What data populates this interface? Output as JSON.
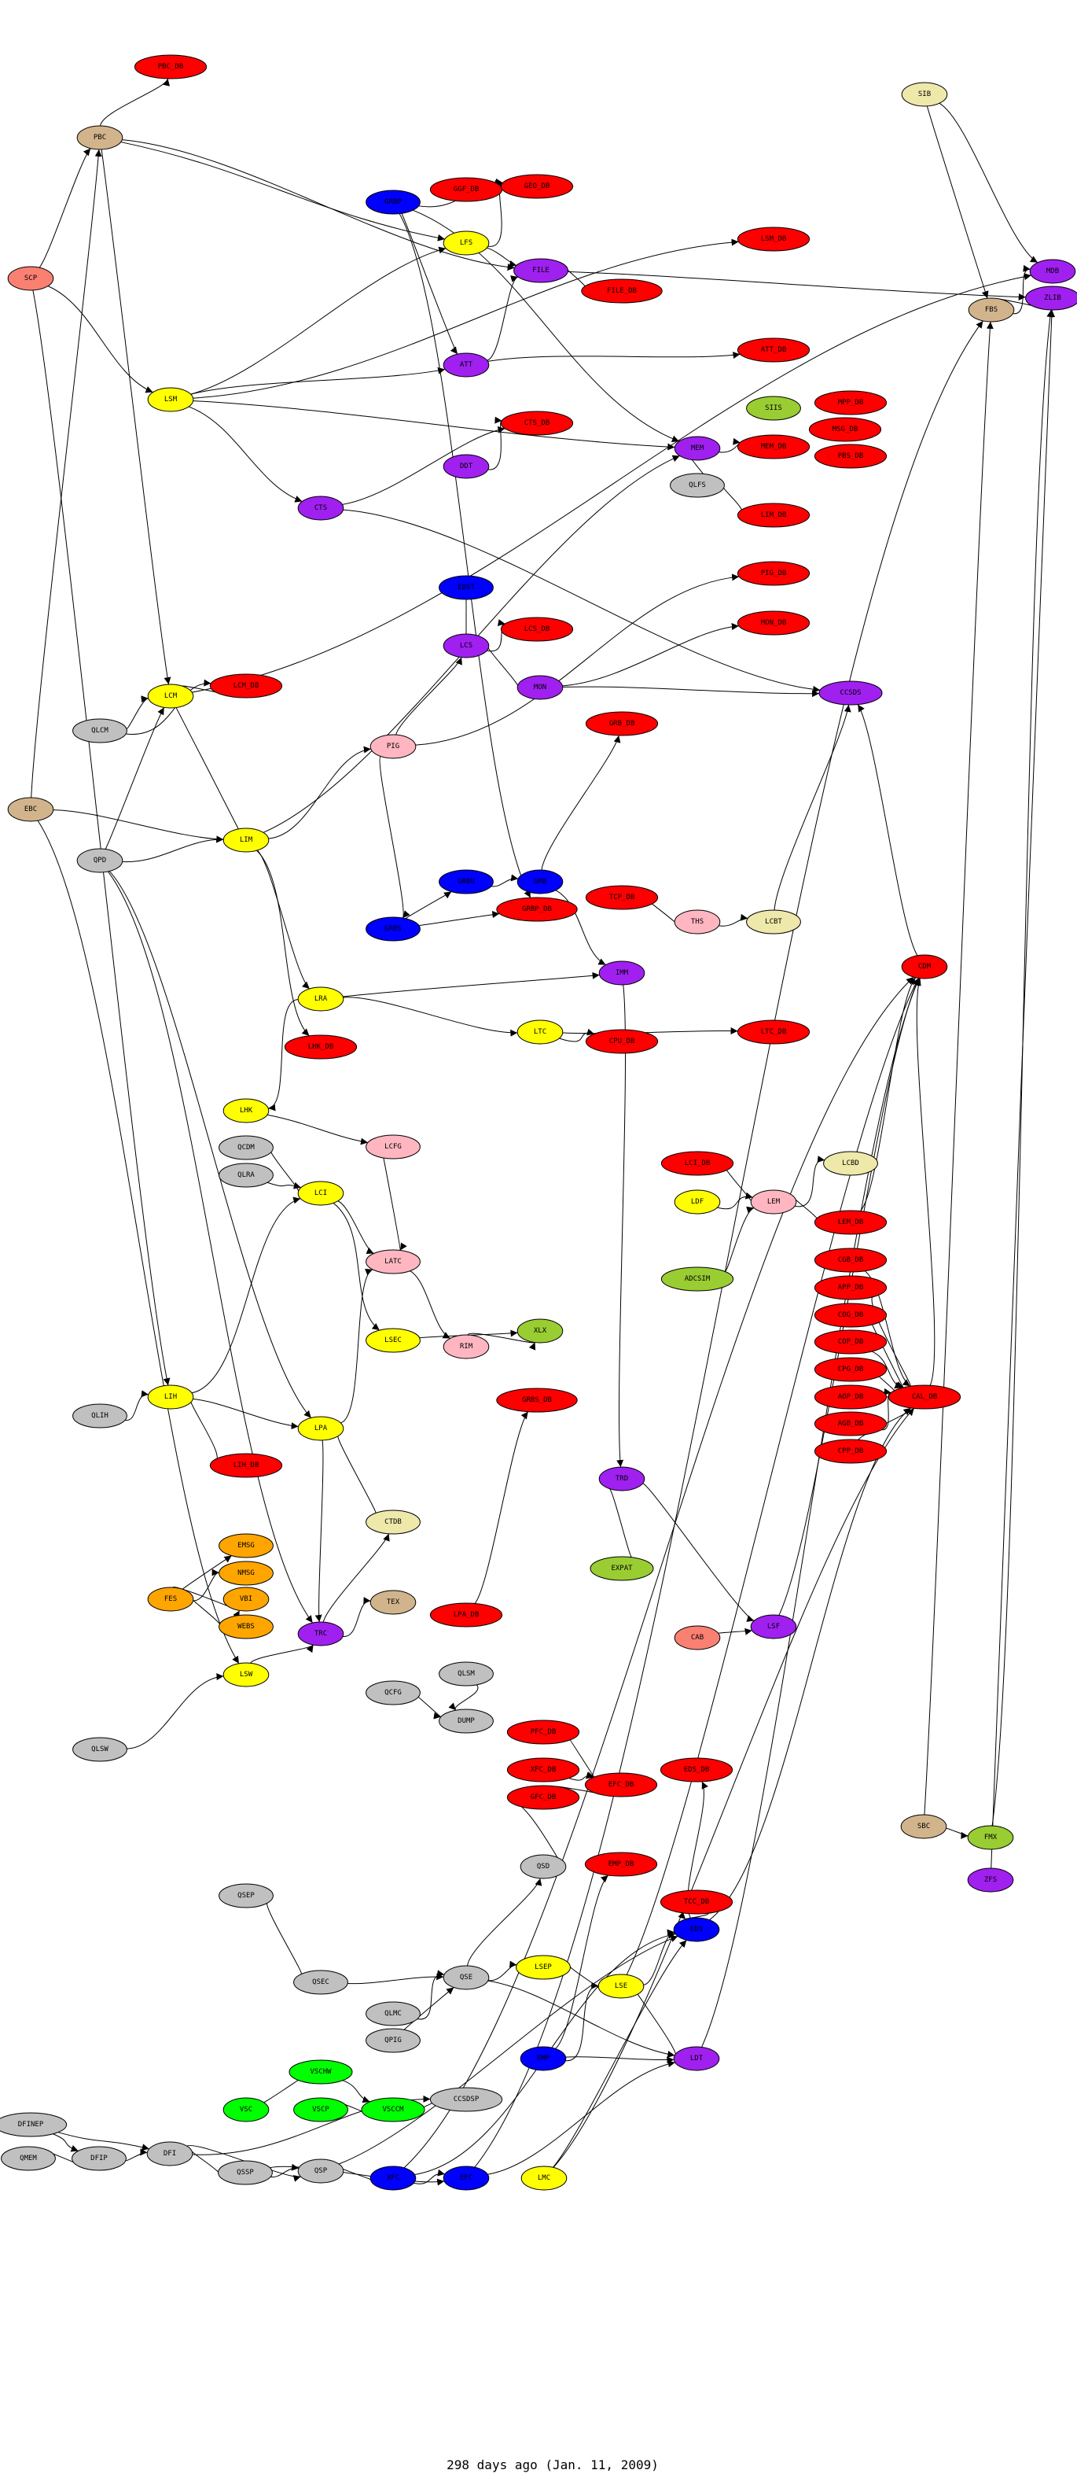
{
  "caption": "298 days ago (Jan. 11, 2009)",
  "colors": {
    "red": "#ff0000",
    "yellow": "#ffff00",
    "purple": "#a020f0",
    "blue": "#0000ff",
    "gray": "#c0c0c0",
    "tan": "#d2b48c",
    "salmon": "#fa8072",
    "pink": "#ffb6c1",
    "khaki": "#eee8aa",
    "olive": "#9acd32",
    "orange": "#ffa500",
    "green": "#00ff00"
  },
  "nodes": [
    {
      "label": "PBC_DB",
      "color": "red"
    },
    {
      "label": "PBC",
      "color": "tan"
    },
    {
      "label": "SCP",
      "color": "salmon"
    },
    {
      "label": "GRBP",
      "color": "blue"
    },
    {
      "label": "GGF_DB",
      "color": "red"
    },
    {
      "label": "GEO_DB",
      "color": "red"
    },
    {
      "label": "LFS",
      "color": "yellow"
    },
    {
      "label": "FILE",
      "color": "purple"
    },
    {
      "label": "ATT",
      "color": "purple"
    },
    {
      "label": "CTS_DB",
      "color": "red"
    },
    {
      "label": "DDT",
      "color": "purple"
    },
    {
      "label": "CTS",
      "color": "purple"
    },
    {
      "label": "LSM",
      "color": "yellow"
    },
    {
      "label": "SIB",
      "color": "khaki"
    },
    {
      "label": "MDB",
      "color": "purple"
    },
    {
      "label": "ZLIB",
      "color": "purple"
    },
    {
      "label": "FBS",
      "color": "tan"
    },
    {
      "label": "LSM_DB",
      "color": "red"
    },
    {
      "label": "FILE_DB",
      "color": "red"
    },
    {
      "label": "ATT_DB",
      "color": "red"
    },
    {
      "label": "SIIS",
      "color": "olive"
    },
    {
      "label": "MPP_DB",
      "color": "red"
    },
    {
      "label": "MSG_DB",
      "color": "red"
    },
    {
      "label": "PBS_DB",
      "color": "red"
    },
    {
      "label": "MEM",
      "color": "purple"
    },
    {
      "label": "MEM_DB",
      "color": "red"
    },
    {
      "label": "QLFS",
      "color": "gray"
    },
    {
      "label": "LIM_DB",
      "color": "red"
    },
    {
      "label": "EDST",
      "color": "blue"
    },
    {
      "label": "LCS_DB",
      "color": "red"
    },
    {
      "label": "LCS",
      "color": "purple"
    },
    {
      "label": "MON",
      "color": "purple"
    },
    {
      "label": "LCM",
      "color": "yellow"
    },
    {
      "label": "LCM_DB",
      "color": "red"
    },
    {
      "label": "QLCM",
      "color": "gray"
    },
    {
      "label": "PIG",
      "color": "pink"
    },
    {
      "label": "EBC",
      "color": "tan"
    },
    {
      "label": "QPD",
      "color": "gray"
    },
    {
      "label": "LIM",
      "color": "yellow"
    },
    {
      "label": "GRBU",
      "color": "blue"
    },
    {
      "label": "GRB",
      "color": "blue"
    },
    {
      "label": "GRBP_DB",
      "color": "red"
    },
    {
      "label": "GRBS",
      "color": "blue"
    },
    {
      "label": "LRA",
      "color": "yellow"
    },
    {
      "label": "LTC",
      "color": "yellow"
    },
    {
      "label": "LHK_DB",
      "color": "red"
    },
    {
      "label": "PIG_DB",
      "color": "red"
    },
    {
      "label": "MON_DB",
      "color": "red"
    },
    {
      "label": "CCSDS",
      "color": "purple"
    },
    {
      "label": "GRB_DB",
      "color": "red"
    },
    {
      "label": "TCP_DB",
      "color": "red"
    },
    {
      "label": "THS",
      "color": "pink"
    },
    {
      "label": "LCBT",
      "color": "khaki"
    },
    {
      "label": "CDM",
      "color": "red"
    },
    {
      "label": "IMM",
      "color": "purple"
    },
    {
      "label": "CPU_DB",
      "color": "red"
    },
    {
      "label": "LTC_DB",
      "color": "red"
    },
    {
      "label": "LHK",
      "color": "yellow"
    },
    {
      "label": "QCDM",
      "color": "gray"
    },
    {
      "label": "QLRA",
      "color": "gray"
    },
    {
      "label": "LCI",
      "color": "yellow"
    },
    {
      "label": "LCFG",
      "color": "pink"
    },
    {
      "label": "LATC",
      "color": "pink"
    },
    {
      "label": "XLX",
      "color": "olive"
    },
    {
      "label": "RIM",
      "color": "pink"
    },
    {
      "label": "LSEC",
      "color": "yellow"
    },
    {
      "label": "LIH",
      "color": "yellow"
    },
    {
      "label": "QLIH",
      "color": "gray"
    },
    {
      "label": "GRBS_DB",
      "color": "red"
    },
    {
      "label": "LPA",
      "color": "yellow"
    },
    {
      "label": "LIH_DB",
      "color": "red"
    },
    {
      "label": "CTDB",
      "color": "khaki"
    },
    {
      "label": "EMSG",
      "color": "orange"
    },
    {
      "label": "NMSG",
      "color": "orange"
    },
    {
      "label": "VBI",
      "color": "orange"
    },
    {
      "label": "FES",
      "color": "orange"
    },
    {
      "label": "WEBS",
      "color": "orange"
    },
    {
      "label": "TEX",
      "color": "tan"
    },
    {
      "label": "TRC",
      "color": "purple"
    },
    {
      "label": "LPA_DB",
      "color": "red"
    },
    {
      "label": "LCI_DB",
      "color": "red"
    },
    {
      "label": "LDF",
      "color": "yellow"
    },
    {
      "label": "LEM",
      "color": "pink"
    },
    {
      "label": "LCBD",
      "color": "khaki"
    },
    {
      "label": "LEM_DB",
      "color": "red"
    },
    {
      "label": "CGB_DB",
      "color": "red"
    },
    {
      "label": "APP_DB",
      "color": "red"
    },
    {
      "label": "COG_DB",
      "color": "red"
    },
    {
      "label": "COP_DB",
      "color": "red"
    },
    {
      "label": "CPG_DB",
      "color": "red"
    },
    {
      "label": "AOP_DB",
      "color": "red"
    },
    {
      "label": "AGB_DB",
      "color": "red"
    },
    {
      "label": "CPP_DB",
      "color": "red"
    },
    {
      "label": "CAL_DB",
      "color": "red"
    },
    {
      "label": "ADCSIM",
      "color": "olive"
    },
    {
      "label": "TRD",
      "color": "purple"
    },
    {
      "label": "EXPAT",
      "color": "olive"
    },
    {
      "label": "LSF",
      "color": "purple"
    },
    {
      "label": "CAB",
      "color": "salmon"
    },
    {
      "label": "LSW",
      "color": "yellow"
    },
    {
      "label": "QLSW",
      "color": "gray"
    },
    {
      "label": "QCFG",
      "color": "gray"
    },
    {
      "label": "QLSM",
      "color": "gray"
    },
    {
      "label": "DUMP",
      "color": "gray"
    },
    {
      "label": "QSEP",
      "color": "gray"
    },
    {
      "label": "QSEC",
      "color": "gray"
    },
    {
      "label": "QSE",
      "color": "gray"
    },
    {
      "label": "QLMC",
      "color": "gray"
    },
    {
      "label": "QPIG",
      "color": "gray"
    },
    {
      "label": "VSCHW",
      "color": "green"
    },
    {
      "label": "VSC",
      "color": "green"
    },
    {
      "label": "VSCP",
      "color": "green"
    },
    {
      "label": "VSCCM",
      "color": "green"
    },
    {
      "label": "CCSDSP",
      "color": "gray"
    },
    {
      "label": "DFINEP",
      "color": "gray"
    },
    {
      "label": "QMEM",
      "color": "gray"
    },
    {
      "label": "DFIP",
      "color": "gray"
    },
    {
      "label": "DFI",
      "color": "gray"
    },
    {
      "label": "PFC_DB",
      "color": "red"
    },
    {
      "label": "XFC_DB",
      "color": "red"
    },
    {
      "label": "GFC_DB",
      "color": "red"
    },
    {
      "label": "EFC_DB",
      "color": "red"
    },
    {
      "label": "EDS_DB",
      "color": "red"
    },
    {
      "label": "QSD",
      "color": "gray"
    },
    {
      "label": "EMP_DB",
      "color": "red"
    },
    {
      "label": "TCC_DB",
      "color": "red"
    },
    {
      "label": "EDS",
      "color": "blue"
    },
    {
      "label": "LSEP",
      "color": "yellow"
    },
    {
      "label": "LSE",
      "color": "yellow"
    },
    {
      "label": "EMP",
      "color": "blue"
    },
    {
      "label": "LDT",
      "color": "purple"
    },
    {
      "label": "SBC",
      "color": "tan"
    },
    {
      "label": "FMX",
      "color": "olive"
    },
    {
      "label": "ZFS",
      "color": "purple"
    },
    {
      "label": "QSSP",
      "color": "gray"
    },
    {
      "label": "QSP",
      "color": "gray"
    },
    {
      "label": "XFC",
      "color": "blue"
    },
    {
      "label": "EFC",
      "color": "blue"
    },
    {
      "label": "LMC",
      "color": "yellow"
    }
  ],
  "edges": [
    [
      "PBC",
      "PBC_DB"
    ],
    [
      "SCP",
      "PBC"
    ],
    [
      "SCP",
      "LSM"
    ],
    [
      "EBC",
      "PBC"
    ],
    [
      "GGF_DB",
      "GEO_DB"
    ],
    [
      "GRBP",
      "GEO_DB"
    ],
    [
      "GRBP",
      "ATT"
    ],
    [
      "LFS",
      "FILE"
    ],
    [
      "LFS",
      "GEO_DB"
    ],
    [
      "FILE",
      "FILE_DB"
    ],
    [
      "ATT",
      "FILE"
    ],
    [
      "LSM",
      "ATT"
    ],
    [
      "LSM",
      "LFS"
    ],
    [
      "LSM",
      "CTS"
    ],
    [
      "SIB",
      "FBS"
    ],
    [
      "SIB",
      "MDB"
    ],
    [
      "FBS",
      "MDB"
    ],
    [
      "FBS",
      "ZLIB"
    ],
    [
      "FILE",
      "ZLIB"
    ],
    [
      "PBC",
      "LFS"
    ],
    [
      "PBC",
      "FILE"
    ],
    [
      "MEM",
      "MEM_DB"
    ],
    [
      "MEM",
      "QLFS"
    ],
    [
      "QLFS",
      "LIM_DB"
    ],
    [
      "LSM",
      "LSM_DB"
    ],
    [
      "ATT",
      "ATT_DB"
    ],
    [
      "CTS",
      "CTS_DB"
    ],
    [
      "DDT",
      "CTS_DB"
    ],
    [
      "LCM",
      "LCM_DB"
    ],
    [
      "QLCM",
      "LCM"
    ],
    [
      "QLCM",
      "LCM_DB"
    ],
    [
      "QPD",
      "LCM"
    ],
    [
      "QPD",
      "LIM"
    ],
    [
      "LCM",
      "LIM"
    ],
    [
      "EBC",
      "LIM"
    ],
    [
      "LIM",
      "PIG"
    ],
    [
      "PIG",
      "LCS"
    ],
    [
      "EDST",
      "LCS"
    ],
    [
      "LCS",
      "LCS_DB"
    ],
    [
      "LCS",
      "MON"
    ],
    [
      "MON",
      "MON_DB"
    ],
    [
      "PIG",
      "PIG_DB"
    ],
    [
      "GRBS",
      "GRBU"
    ],
    [
      "GRBU",
      "GRB"
    ],
    [
      "GRB",
      "GRB_DB"
    ],
    [
      "GRBS",
      "GRBP_DB"
    ],
    [
      "GRBP",
      "GRBP_DB"
    ],
    [
      "PIG",
      "GRBS"
    ],
    [
      "LIM",
      "LRA"
    ],
    [
      "LIM",
      "LHK_DB"
    ],
    [
      "LRA",
      "LTC"
    ],
    [
      "LTC",
      "LTC_DB"
    ],
    [
      "LTC",
      "CPU_DB"
    ],
    [
      "LRA",
      "IMM"
    ],
    [
      "THS",
      "LCBT"
    ],
    [
      "LCBT",
      "CCSDS"
    ],
    [
      "MON",
      "CCSDS"
    ],
    [
      "GRB",
      "IMM"
    ],
    [
      "TCP_DB",
      "THS"
    ],
    [
      "CDM",
      "CCSDS"
    ],
    [
      "QLRA",
      "LCI"
    ],
    [
      "QCDM",
      "LCI"
    ],
    [
      "LCI",
      "LATC"
    ],
    [
      "LCI",
      "LSEC"
    ],
    [
      "LCFG",
      "LATC"
    ],
    [
      "LATC",
      "RIM"
    ],
    [
      "RIM",
      "XLX"
    ],
    [
      "LSEC",
      "XLX"
    ],
    [
      "QLIH",
      "LIH"
    ],
    [
      "LIH",
      "LIH_DB"
    ],
    [
      "LIH",
      "LPA"
    ],
    [
      "LPA",
      "LATC"
    ],
    [
      "LPA",
      "CTDB"
    ],
    [
      "LPA",
      "TRC"
    ],
    [
      "LIH",
      "LCI"
    ],
    [
      "FES",
      "EMSG"
    ],
    [
      "FES",
      "NMSG"
    ],
    [
      "FES",
      "VBI"
    ],
    [
      "FES",
      "WEBS"
    ],
    [
      "TRC",
      "TEX"
    ],
    [
      "TRC",
      "CTDB"
    ],
    [
      "LPA_DB",
      "GRBS_DB"
    ],
    [
      "LDF",
      "LEM"
    ],
    [
      "LCI_DB",
      "LEM"
    ],
    [
      "ADCSIM",
      "LEM"
    ],
    [
      "LEM",
      "LCBD"
    ],
    [
      "LEM",
      "LEM_DB"
    ],
    [
      "CGB_DB",
      "CAL_DB"
    ],
    [
      "APP_DB",
      "CAL_DB"
    ],
    [
      "COG_DB",
      "CAL_DB"
    ],
    [
      "COP_DB",
      "CAL_DB"
    ],
    [
      "CPG_DB",
      "CAL_DB"
    ],
    [
      "AOP_DB",
      "CAL_DB"
    ],
    [
      "AGB_DB",
      "CAL_DB"
    ],
    [
      "CPP_DB",
      "CAL_DB"
    ],
    [
      "LEM_DB",
      "CDM"
    ],
    [
      "CAL_DB",
      "CDM"
    ],
    [
      "TRD",
      "EXPAT"
    ],
    [
      "IMM",
      "TRD"
    ],
    [
      "TRD",
      "LSF"
    ],
    [
      "CAB",
      "LSF"
    ],
    [
      "QLSW",
      "LSW"
    ],
    [
      "LSW",
      "TRC"
    ],
    [
      "QCFG",
      "DUMP"
    ],
    [
      "QLSM",
      "DUMP"
    ],
    [
      "QSEP",
      "QSEC"
    ],
    [
      "QSEC",
      "QSE"
    ],
    [
      "QLMC",
      "QSE"
    ],
    [
      "QPIG",
      "QSE"
    ],
    [
      "QSE",
      "LSEP"
    ],
    [
      "QSE",
      "QSD"
    ],
    [
      "VSC",
      "VSCHW"
    ],
    [
      "VSCHW",
      "VSCCM"
    ],
    [
      "VSCP",
      "VSCCM"
    ],
    [
      "VSCCM",
      "CCSDSP"
    ],
    [
      "DFINEP",
      "DFIP"
    ],
    [
      "QMEM",
      "DFIP"
    ],
    [
      "DFIP",
      "DFI"
    ],
    [
      "DFINEP",
      "DFI"
    ],
    [
      "DFI",
      "QSSP"
    ],
    [
      "QSSP",
      "QSP"
    ],
    [
      "DFI",
      "QSP"
    ],
    [
      "QSP",
      "XFC"
    ],
    [
      "XFC",
      "EFC"
    ],
    [
      "QSSP",
      "EFC"
    ],
    [
      "PFC_DB",
      "EFC_DB"
    ],
    [
      "XFC_DB",
      "EFC_DB"
    ],
    [
      "GFC_DB",
      "EFC_DB"
    ],
    [
      "EMP",
      "EMP_DB"
    ],
    [
      "EMP",
      "LSE"
    ],
    [
      "LSEP",
      "LSE"
    ],
    [
      "LSE",
      "EDS"
    ],
    [
      "LSE",
      "LDT"
    ],
    [
      "EMP",
      "LDT"
    ],
    [
      "TCC_DB",
      "EDS"
    ],
    [
      "EDS",
      "EDS_DB"
    ],
    [
      "SBC",
      "FMX"
    ],
    [
      "QSD",
      "GFC_DB"
    ],
    [
      "LMC",
      "EDS"
    ],
    [
      "EFC",
      "LDT"
    ],
    [
      "XFC",
      "EDS"
    ],
    [
      "ZFS",
      "ZLIB"
    ],
    [
      "FMX",
      "ZLIB"
    ],
    [
      "LSE",
      "CDM"
    ],
    [
      "LDT",
      "CDM"
    ],
    [
      "EBC",
      "LSW"
    ],
    [
      "SCP",
      "LIH"
    ],
    [
      "QPD",
      "LPA"
    ],
    [
      "QPD",
      "TRC"
    ],
    [
      "PBC",
      "LCM"
    ],
    [
      "LSM",
      "MEM"
    ],
    [
      "GRBP",
      "MEM"
    ],
    [
      "LIM",
      "MEM"
    ],
    [
      "LCM",
      "MDB"
    ],
    [
      "CTS",
      "CCSDS"
    ],
    [
      "LSF",
      "CDM"
    ],
    [
      "EDS",
      "CAL_DB"
    ],
    [
      "LMC",
      "CAL_DB"
    ],
    [
      "QSE",
      "LDT"
    ],
    [
      "DFI",
      "CCSDSP"
    ],
    [
      "QSP",
      "EDS"
    ],
    [
      "XFC",
      "CDM"
    ],
    [
      "EFC",
      "FBS"
    ],
    [
      "SBC",
      "FBS"
    ],
    [
      "LHK",
      "LCFG"
    ],
    [
      "LRA",
      "LHK"
    ]
  ]
}
